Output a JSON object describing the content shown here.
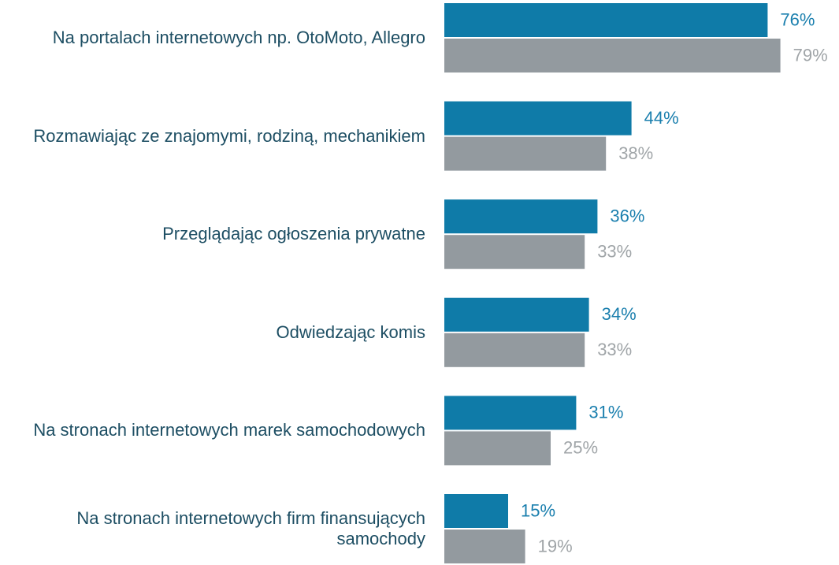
{
  "chart_data": {
    "type": "bar",
    "orientation": "horizontal",
    "categories": [
      "Na portalach internetowych np. OtoMoto, Allegro",
      "Rozmawiając ze znajomymi, rodziną, mechanikiem",
      "Przeglądając ogłoszenia prywatne",
      "Odwiedzając komis",
      "Na stronach internetowych marek samochodowych",
      "Na stronach internetowych firm finansujących samochody"
    ],
    "series": [
      {
        "color": "#0f7ba8",
        "label_color": "#1a7fae",
        "values": [
          76,
          44,
          36,
          34,
          31,
          15
        ],
        "value_labels": [
          "76%",
          "44%",
          "36%",
          "34%",
          "31%",
          "15%"
        ]
      },
      {
        "color": "#939a9f",
        "label_color": "#a0a5a8",
        "values": [
          79,
          38,
          33,
          33,
          25,
          19
        ],
        "value_labels": [
          "79%",
          "38%",
          "33%",
          "33%",
          "25%",
          "19%"
        ]
      }
    ]
  }
}
